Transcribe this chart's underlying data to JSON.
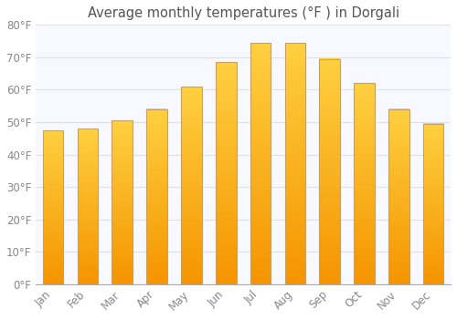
{
  "title": "Average monthly temperatures (°F ) in Dorgali",
  "categories": [
    "Jan",
    "Feb",
    "Mar",
    "Apr",
    "May",
    "Jun",
    "Jul",
    "Aug",
    "Sep",
    "Oct",
    "Nov",
    "Dec"
  ],
  "values": [
    47.5,
    48.0,
    50.5,
    54.0,
    61.0,
    68.5,
    74.5,
    74.5,
    69.5,
    62.0,
    54.0,
    49.5
  ],
  "bar_color_top": "#FFD040",
  "bar_color_bottom": "#F59500",
  "bar_edge_color": "#C8A060",
  "ylim": [
    0,
    80
  ],
  "yticks": [
    0,
    10,
    20,
    30,
    40,
    50,
    60,
    70,
    80
  ],
  "ytick_labels": [
    "0°F",
    "10°F",
    "20°F",
    "30°F",
    "40°F",
    "50°F",
    "60°F",
    "70°F",
    "80°F"
  ],
  "background_color": "#ffffff",
  "plot_bg_color": "#f8f8ff",
  "grid_color": "#e0e0e8",
  "title_fontsize": 10.5,
  "tick_fontsize": 8.5,
  "tick_color": "#888888",
  "bar_width": 0.6
}
